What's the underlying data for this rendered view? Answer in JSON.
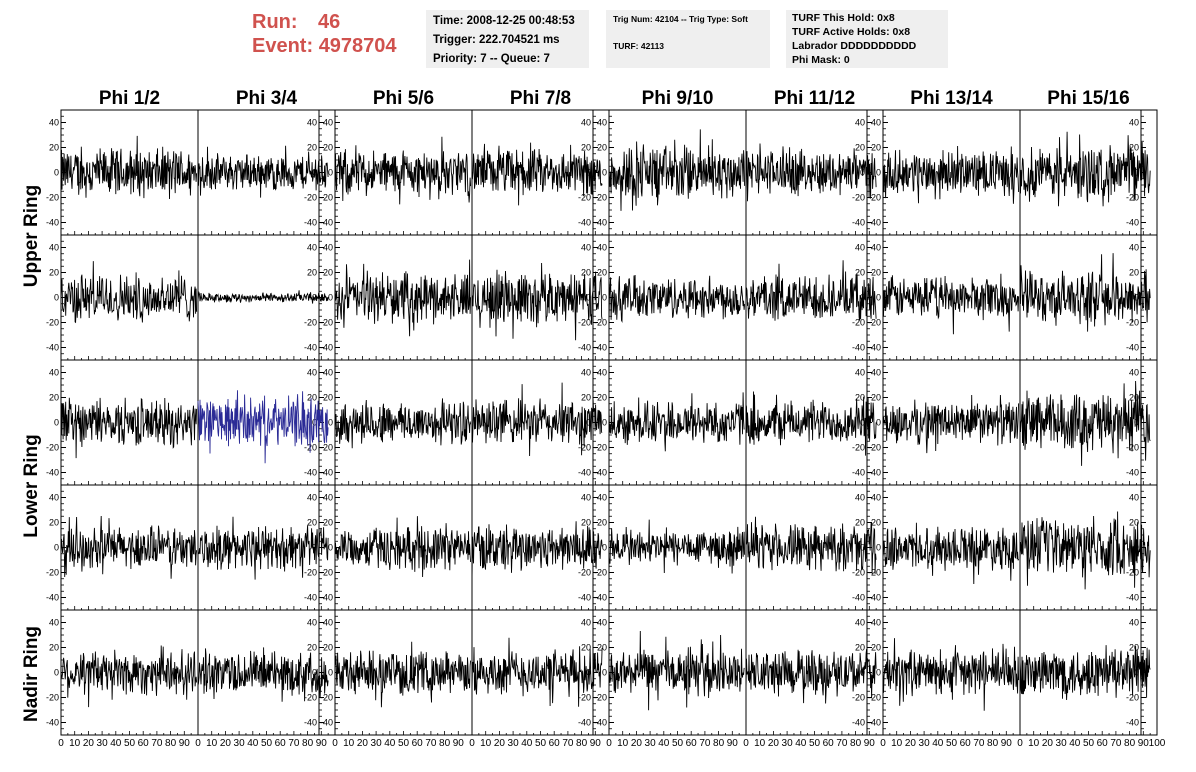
{
  "header": {
    "run_label": "Run:",
    "run_value": "46",
    "event_label": "Event:",
    "event_value": "4978704",
    "time": "Time: 2008-12-25 00:48:53",
    "trigger": "Trigger: 222.704521 ms",
    "priority": "Priority: 7 -- Queue: 7",
    "trig_num": "Trig Num: 42104 -- Trig Type: Soft",
    "turf": "TURF: 42113",
    "turf_hold": "TURF This Hold: 0x8",
    "turf_active": "TURF Active Holds: 0x8",
    "labrador": "Labrador DDDDDDDDDD",
    "phi_mask": "Phi Mask: 0"
  },
  "columns": [
    "Phi 1/2",
    "Phi 3/4",
    "Phi 5/6",
    "Phi 7/8",
    "Phi 9/10",
    "Phi 11/12",
    "Phi 13/14",
    "Phi 15/16"
  ],
  "rings": [
    "Upper Ring",
    "Lower Ring",
    "Nadir Ring"
  ],
  "colors": {
    "trace": "#000000",
    "highlight_trace": "#2b2b96",
    "info_bg": "#efefef",
    "run_text": "#d0524e"
  },
  "chart_data": {
    "type": "line",
    "layout": "grid of 5 rows x 8 columns of waveform panels",
    "x_ticks": [
      0,
      10,
      20,
      30,
      40,
      50,
      60,
      70,
      80,
      90,
      100
    ],
    "xlim": [
      0,
      100
    ],
    "y_ticks": [
      -40,
      -20,
      0,
      20,
      40
    ],
    "ylim": [
      -50,
      50
    ],
    "left_axis_columns": [
      0,
      2,
      4,
      6
    ],
    "right_axis_columns": [
      1,
      3,
      5,
      7
    ],
    "grid": false,
    "highlight_panel": {
      "row": 2,
      "col": 1
    },
    "panels": [
      [
        {
          "amplitude": 16
        },
        {
          "amplitude": 12
        },
        {
          "amplitude": 15
        },
        {
          "amplitude": 15
        },
        {
          "amplitude": 18
        },
        {
          "amplitude": 15
        },
        {
          "amplitude": 14
        },
        {
          "amplitude": 18
        }
      ],
      [
        {
          "amplitude": 16
        },
        {
          "amplitude": 3
        },
        {
          "amplitude": 16
        },
        {
          "amplitude": 17
        },
        {
          "amplitude": 14
        },
        {
          "amplitude": 15
        },
        {
          "amplitude": 14
        },
        {
          "amplitude": 17
        }
      ],
      [
        {
          "amplitude": 15
        },
        {
          "amplitude": 16
        },
        {
          "amplitude": 14
        },
        {
          "amplitude": 15
        },
        {
          "amplitude": 14
        },
        {
          "amplitude": 14
        },
        {
          "amplitude": 14
        },
        {
          "amplitude": 19
        }
      ],
      [
        {
          "amplitude": 14
        },
        {
          "amplitude": 14
        },
        {
          "amplitude": 14
        },
        {
          "amplitude": 15
        },
        {
          "amplitude": 12
        },
        {
          "amplitude": 15
        },
        {
          "amplitude": 14
        },
        {
          "amplitude": 19
        }
      ],
      [
        {
          "amplitude": 15
        },
        {
          "amplitude": 14
        },
        {
          "amplitude": 14
        },
        {
          "amplitude": 15
        },
        {
          "amplitude": 15
        },
        {
          "amplitude": 15
        },
        {
          "amplitude": 15
        },
        {
          "amplitude": 17
        }
      ]
    ]
  }
}
